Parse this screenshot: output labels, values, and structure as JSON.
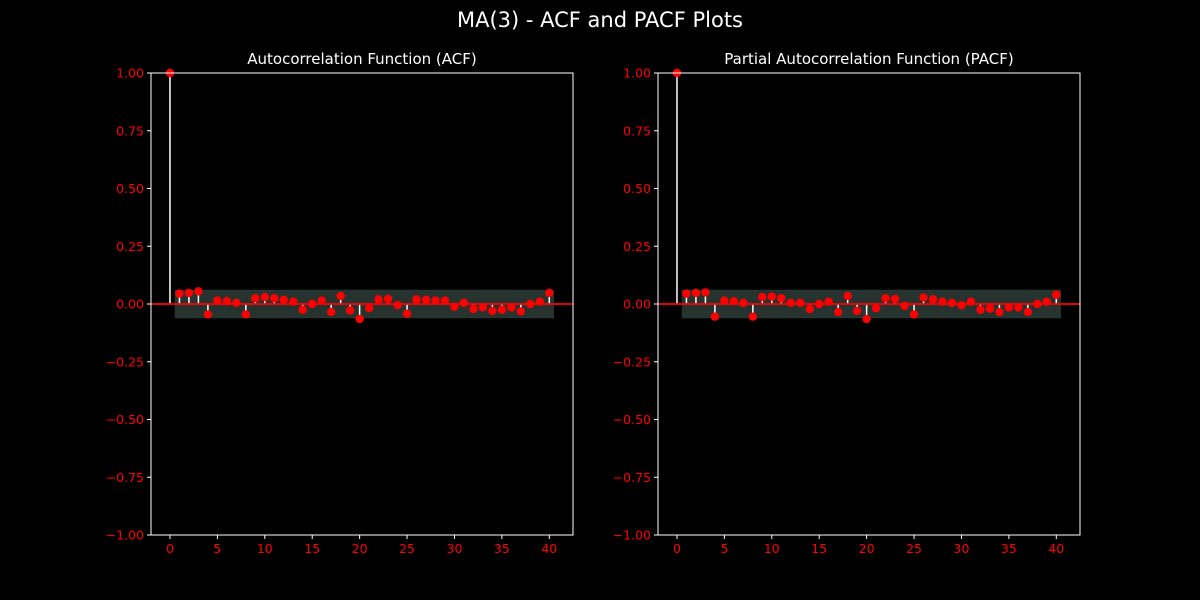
{
  "suptitle": "MA(3) - ACF and PACF Plots",
  "colors": {
    "background": "#000000",
    "axes_frame": "#ffffff",
    "tick_labels": "#ff0000",
    "stems": "#ffffff",
    "markers": "#ff0000",
    "zero_line": "#ff0000",
    "confidence_band": "#26332f",
    "title_text": "#ffffff"
  },
  "chart_data": [
    {
      "type": "stem",
      "title": "Autocorrelation Function (ACF)",
      "xlabel": "",
      "ylabel": "",
      "xlim": [
        -2,
        42.5
      ],
      "ylim": [
        -1.0,
        1.0
      ],
      "xticks": [
        "0",
        "5",
        "10",
        "15",
        "20",
        "25",
        "30",
        "35",
        "40"
      ],
      "yticks": [
        "1.00",
        "0.75",
        "0.50",
        "0.25",
        "0.00",
        "−0.25",
        "−0.50",
        "−0.75",
        "−1.00"
      ],
      "confidence_interval": [
        -0.062,
        0.062
      ],
      "grid": false,
      "lags": [
        0,
        1,
        2,
        3,
        4,
        5,
        6,
        7,
        8,
        9,
        10,
        11,
        12,
        13,
        14,
        15,
        16,
        17,
        18,
        19,
        20,
        21,
        22,
        23,
        24,
        25,
        26,
        27,
        28,
        29,
        30,
        31,
        32,
        33,
        34,
        35,
        36,
        37,
        38,
        39,
        40
      ],
      "values": [
        1.0,
        0.045,
        0.048,
        0.055,
        -0.045,
        0.015,
        0.012,
        0.005,
        -0.045,
        0.025,
        0.03,
        0.025,
        0.018,
        0.01,
        -0.025,
        0.0,
        0.015,
        -0.035,
        0.035,
        -0.028,
        -0.065,
        -0.018,
        0.02,
        0.022,
        -0.005,
        -0.042,
        0.02,
        0.018,
        0.015,
        0.015,
        -0.012,
        0.005,
        -0.022,
        -0.015,
        -0.03,
        -0.025,
        -0.015,
        -0.032,
        0.0,
        0.01,
        0.048
      ]
    },
    {
      "type": "stem",
      "title": "Partial Autocorrelation Function (PACF)",
      "xlabel": "",
      "ylabel": "",
      "xlim": [
        -2,
        42.5
      ],
      "ylim": [
        -1.0,
        1.0
      ],
      "xticks": [
        "0",
        "5",
        "10",
        "15",
        "20",
        "25",
        "30",
        "35",
        "40"
      ],
      "yticks": [
        "1.00",
        "0.75",
        "0.50",
        "0.25",
        "0.00",
        "−0.25",
        "−0.50",
        "−0.75",
        "−1.00"
      ],
      "confidence_interval": [
        -0.062,
        0.062
      ],
      "grid": false,
      "lags": [
        0,
        1,
        2,
        3,
        4,
        5,
        6,
        7,
        8,
        9,
        10,
        11,
        12,
        13,
        14,
        15,
        16,
        17,
        18,
        19,
        20,
        21,
        22,
        23,
        24,
        25,
        26,
        27,
        28,
        29,
        30,
        31,
        32,
        33,
        34,
        35,
        36,
        37,
        38,
        39,
        40
      ],
      "values": [
        1.0,
        0.045,
        0.048,
        0.05,
        -0.055,
        0.015,
        0.012,
        0.005,
        -0.055,
        0.03,
        0.032,
        0.025,
        0.005,
        0.005,
        -0.022,
        0.0,
        0.01,
        -0.035,
        0.035,
        -0.03,
        -0.065,
        -0.018,
        0.025,
        0.022,
        -0.008,
        -0.045,
        0.028,
        0.02,
        0.01,
        0.005,
        -0.005,
        0.01,
        -0.025,
        -0.02,
        -0.035,
        -0.015,
        -0.015,
        -0.035,
        0.0,
        0.01,
        0.04
      ]
    }
  ]
}
